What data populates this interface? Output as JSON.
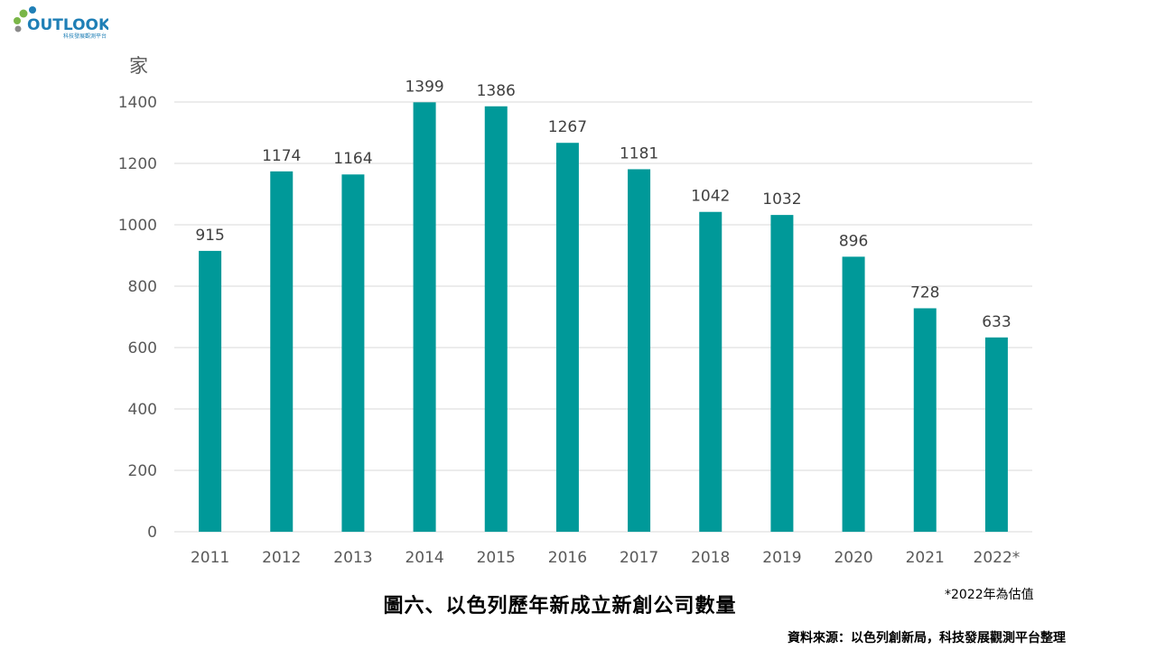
{
  "logo": {
    "text": "OUTLOOK",
    "subtext": "科技發展觀測平台",
    "colors": {
      "green": "#7ab648",
      "blue": "#1f7fb6",
      "gray": "#8a8a8a"
    }
  },
  "chart_data": {
    "type": "bar",
    "title": "圖六、以色列歷年新成立新創公司數量",
    "ylabel": "家",
    "xlabel": "",
    "categories": [
      "2011",
      "2012",
      "2013",
      "2014",
      "2015",
      "2016",
      "2017",
      "2018",
      "2019",
      "2020",
      "2021",
      "2022*"
    ],
    "values": [
      915,
      1174,
      1164,
      1399,
      1386,
      1267,
      1181,
      1042,
      1032,
      896,
      728,
      633
    ],
    "ylim": [
      0,
      1400
    ],
    "yticks": [
      0,
      200,
      400,
      600,
      800,
      1000,
      1200,
      1400
    ],
    "grid": true,
    "legend": "none",
    "bar_color": "#009999",
    "grid_color": "#d9d9d9"
  },
  "notes": {
    "estimate": "*2022年為估值",
    "source": "資料來源：以色列創新局，科技發展觀測平台整理"
  }
}
